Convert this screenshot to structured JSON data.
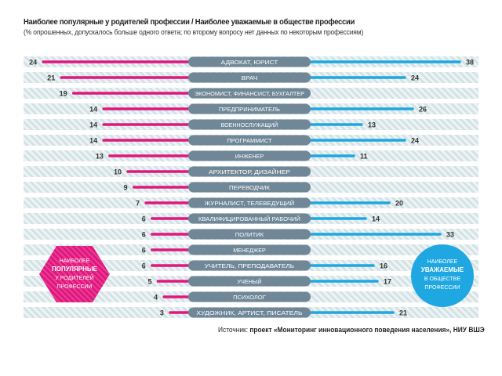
{
  "header": {
    "title": "Наиболее популярные у родителей профессии / Наиболее уважаемые в обществе профессии",
    "subtitle": "(% опрошенных, допускалось больше одного ответа; по второму вопросу нет данных по некоторым профессиям)"
  },
  "colors": {
    "popular": "#e0177e",
    "respected": "#1ea7e1",
    "label_pill": "#6f8797",
    "stripe": "#d6e4e6"
  },
  "chart_data": {
    "type": "bar",
    "title": "Наиболее популярные у родителей профессии / Наиболее уважаемые в обществе профессии",
    "categories": [
      "АДВОКАТ, ЮРИСТ",
      "ВРАЧ",
      "ЭКОНОМИСТ, ФИНАНСИСТ, БУХГАЛТЕР",
      "ПРЕДПРИНИМАТЕЛЬ",
      "ВОЕННОСЛУЖАЩИЙ",
      "ПРОГРАММИСТ",
      "ИНЖЕНЕР",
      "АРХИТЕКТОР, ДИЗАЙНЕР",
      "ПЕРЕВОДЧИК",
      "ЖУРНАЛИСТ, ТЕЛЕВЕДУЩИЙ",
      "КВАЛИФИЦИРОВАННЫЙ РАБОЧИЙ",
      "ПОЛИТИК",
      "МЕНЕДЖЕР",
      "УЧИТЕЛЬ, ПРЕПОДАВАТЕЛЬ",
      "УЧЕНЫЙ",
      "ПСИХОЛОГ",
      "ХУДОЖНИК, АРТИСТ, ПИСАТЕЛЬ"
    ],
    "series": [
      {
        "name": "Наиболее популярные у родителей профессии",
        "values": [
          24,
          21,
          19,
          14,
          14,
          14,
          13,
          10,
          9,
          7,
          6,
          6,
          6,
          6,
          5,
          4,
          3
        ]
      },
      {
        "name": "Наиболее уважаемые в обществе профессии",
        "values": [
          38,
          24,
          null,
          26,
          13,
          24,
          11,
          null,
          null,
          20,
          14,
          33,
          null,
          16,
          17,
          null,
          21
        ]
      }
    ],
    "unit": "% опрошенных"
  },
  "badges": {
    "popular": [
      "НАИБОЛЕЕ",
      "ПОПУЛЯРНЫЕ",
      "У РОДИТЕЛЕЙ",
      "ПРОФЕССИИ"
    ],
    "respected": [
      "НАИБОЛЕЕ",
      "УВАЖАЕМЫЕ",
      "В ОБЩЕСТВЕ",
      "ПРОФЕССИИ"
    ]
  },
  "source": {
    "label": "Источник:",
    "text": "проект «Мониторинг инновационного поведения населения», НИУ ВШЭ"
  }
}
